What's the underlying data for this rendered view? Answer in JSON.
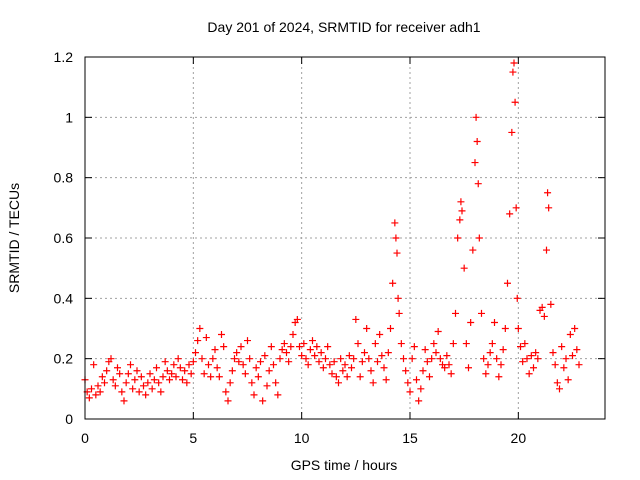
{
  "chart_data": {
    "type": "scatter",
    "title": "Day 201 of 2024, SRMTID for receiver adh1",
    "xlabel": "GPS time / hours",
    "ylabel": "SRMTID / TECUs",
    "xlim": [
      0,
      24
    ],
    "ylim": [
      0,
      1.2
    ],
    "xticks": [
      0,
      5,
      10,
      15,
      20
    ],
    "xtick_labels": [
      "0",
      "5",
      "10",
      "15",
      "20"
    ],
    "yticks": [
      0,
      0.2,
      0.4,
      0.6,
      0.8,
      1.0,
      1.2
    ],
    "ytick_labels": [
      "0",
      "0.2",
      "0.4",
      "0.6",
      "0.8",
      "1",
      "1.2"
    ],
    "grid": true,
    "marker": "+",
    "series": [
      {
        "name": "SRMTID",
        "color": "#ff0000",
        "points": [
          [
            0.0,
            0.13
          ],
          [
            0.1,
            0.09
          ],
          [
            0.2,
            0.07
          ],
          [
            0.3,
            0.1
          ],
          [
            0.4,
            0.18
          ],
          [
            0.5,
            0.08
          ],
          [
            0.6,
            0.11
          ],
          [
            0.7,
            0.09
          ],
          [
            0.8,
            0.14
          ],
          [
            0.9,
            0.12
          ],
          [
            1.0,
            0.16
          ],
          [
            1.1,
            0.19
          ],
          [
            1.2,
            0.2
          ],
          [
            1.3,
            0.13
          ],
          [
            1.4,
            0.11
          ],
          [
            1.5,
            0.17
          ],
          [
            1.6,
            0.15
          ],
          [
            1.7,
            0.09
          ],
          [
            1.8,
            0.06
          ],
          [
            1.9,
            0.12
          ],
          [
            2.0,
            0.15
          ],
          [
            2.1,
            0.18
          ],
          [
            2.2,
            0.1
          ],
          [
            2.3,
            0.13
          ],
          [
            2.4,
            0.16
          ],
          [
            2.5,
            0.09
          ],
          [
            2.6,
            0.14
          ],
          [
            2.7,
            0.11
          ],
          [
            2.8,
            0.08
          ],
          [
            2.9,
            0.12
          ],
          [
            3.0,
            0.15
          ],
          [
            3.1,
            0.1
          ],
          [
            3.2,
            0.13
          ],
          [
            3.3,
            0.17
          ],
          [
            3.4,
            0.12
          ],
          [
            3.5,
            0.09
          ],
          [
            3.6,
            0.14
          ],
          [
            3.7,
            0.19
          ],
          [
            3.8,
            0.16
          ],
          [
            3.9,
            0.13
          ],
          [
            4.0,
            0.15
          ],
          [
            4.1,
            0.18
          ],
          [
            4.2,
            0.14
          ],
          [
            4.3,
            0.2
          ],
          [
            4.4,
            0.17
          ],
          [
            4.5,
            0.13
          ],
          [
            4.6,
            0.16
          ],
          [
            4.7,
            0.12
          ],
          [
            4.8,
            0.18
          ],
          [
            4.9,
            0.15
          ],
          [
            5.0,
            0.19
          ],
          [
            5.1,
            0.22
          ],
          [
            5.2,
            0.26
          ],
          [
            5.3,
            0.3
          ],
          [
            5.4,
            0.2
          ],
          [
            5.5,
            0.15
          ],
          [
            5.6,
            0.27
          ],
          [
            5.7,
            0.18
          ],
          [
            5.8,
            0.14
          ],
          [
            5.9,
            0.2
          ],
          [
            6.0,
            0.23
          ],
          [
            6.1,
            0.17
          ],
          [
            6.2,
            0.14
          ],
          [
            6.3,
            0.28
          ],
          [
            6.4,
            0.24
          ],
          [
            6.5,
            0.09
          ],
          [
            6.6,
            0.06
          ],
          [
            6.7,
            0.12
          ],
          [
            6.8,
            0.16
          ],
          [
            6.9,
            0.2
          ],
          [
            7.0,
            0.22
          ],
          [
            7.1,
            0.19
          ],
          [
            7.2,
            0.24
          ],
          [
            7.3,
            0.18
          ],
          [
            7.4,
            0.15
          ],
          [
            7.5,
            0.26
          ],
          [
            7.6,
            0.2
          ],
          [
            7.7,
            0.12
          ],
          [
            7.8,
            0.08
          ],
          [
            7.9,
            0.17
          ],
          [
            8.0,
            0.14
          ],
          [
            8.1,
            0.19
          ],
          [
            8.2,
            0.06
          ],
          [
            8.3,
            0.21
          ],
          [
            8.4,
            0.11
          ],
          [
            8.5,
            0.16
          ],
          [
            8.6,
            0.24
          ],
          [
            8.7,
            0.18
          ],
          [
            8.8,
            0.12
          ],
          [
            8.9,
            0.08
          ],
          [
            9.0,
            0.2
          ],
          [
            9.1,
            0.23
          ],
          [
            9.2,
            0.25
          ],
          [
            9.3,
            0.22
          ],
          [
            9.4,
            0.19
          ],
          [
            9.5,
            0.24
          ],
          [
            9.6,
            0.28
          ],
          [
            9.7,
            0.32
          ],
          [
            9.8,
            0.33
          ],
          [
            9.9,
            0.24
          ],
          [
            10.0,
            0.21
          ],
          [
            10.1,
            0.25
          ],
          [
            10.2,
            0.2
          ],
          [
            10.3,
            0.18
          ],
          [
            10.4,
            0.23
          ],
          [
            10.5,
            0.26
          ],
          [
            10.6,
            0.21
          ],
          [
            10.7,
            0.24
          ],
          [
            10.8,
            0.19
          ],
          [
            10.9,
            0.22
          ],
          [
            11.0,
            0.17
          ],
          [
            11.1,
            0.2
          ],
          [
            11.2,
            0.24
          ],
          [
            11.3,
            0.18
          ],
          [
            11.4,
            0.15
          ],
          [
            11.5,
            0.19
          ],
          [
            11.6,
            0.14
          ],
          [
            11.7,
            0.12
          ],
          [
            11.8,
            0.2
          ],
          [
            11.9,
            0.16
          ],
          [
            12.0,
            0.18
          ],
          [
            12.1,
            0.14
          ],
          [
            12.2,
            0.21
          ],
          [
            12.3,
            0.17
          ],
          [
            12.4,
            0.2
          ],
          [
            12.5,
            0.33
          ],
          [
            12.6,
            0.25
          ],
          [
            12.7,
            0.14
          ],
          [
            12.8,
            0.19
          ],
          [
            12.9,
            0.22
          ],
          [
            13.0,
            0.3
          ],
          [
            13.1,
            0.2
          ],
          [
            13.2,
            0.16
          ],
          [
            13.3,
            0.12
          ],
          [
            13.4,
            0.25
          ],
          [
            13.5,
            0.19
          ],
          [
            13.6,
            0.28
          ],
          [
            13.7,
            0.21
          ],
          [
            13.8,
            0.17
          ],
          [
            13.9,
            0.13
          ],
          [
            14.0,
            0.22
          ],
          [
            14.1,
            0.3
          ],
          [
            14.2,
            0.45
          ],
          [
            14.3,
            0.65
          ],
          [
            14.35,
            0.6
          ],
          [
            14.4,
            0.55
          ],
          [
            14.45,
            0.4
          ],
          [
            14.5,
            0.35
          ],
          [
            14.6,
            0.25
          ],
          [
            14.7,
            0.2
          ],
          [
            14.8,
            0.16
          ],
          [
            14.9,
            0.12
          ],
          [
            15.0,
            0.09
          ],
          [
            15.1,
            0.2
          ],
          [
            15.2,
            0.24
          ],
          [
            15.3,
            0.13
          ],
          [
            15.4,
            0.06
          ],
          [
            15.5,
            0.1
          ],
          [
            15.6,
            0.16
          ],
          [
            15.7,
            0.23
          ],
          [
            15.8,
            0.19
          ],
          [
            15.9,
            0.14
          ],
          [
            16.0,
            0.2
          ],
          [
            16.1,
            0.25
          ],
          [
            16.2,
            0.22
          ],
          [
            16.3,
            0.29
          ],
          [
            16.4,
            0.2
          ],
          [
            16.5,
            0.18
          ],
          [
            16.6,
            0.17
          ],
          [
            16.7,
            0.21
          ],
          [
            16.8,
            0.18
          ],
          [
            16.9,
            0.15
          ],
          [
            17.0,
            0.25
          ],
          [
            17.1,
            0.35
          ],
          [
            17.2,
            0.6
          ],
          [
            17.3,
            0.66
          ],
          [
            17.35,
            0.72
          ],
          [
            17.4,
            0.69
          ],
          [
            17.5,
            0.5
          ],
          [
            17.6,
            0.25
          ],
          [
            17.7,
            0.17
          ],
          [
            17.8,
            0.32
          ],
          [
            17.9,
            0.56
          ],
          [
            18.0,
            0.85
          ],
          [
            18.05,
            1.0
          ],
          [
            18.1,
            0.92
          ],
          [
            18.15,
            0.78
          ],
          [
            18.2,
            0.6
          ],
          [
            18.3,
            0.35
          ],
          [
            18.4,
            0.2
          ],
          [
            18.5,
            0.15
          ],
          [
            18.6,
            0.18
          ],
          [
            18.7,
            0.22
          ],
          [
            18.8,
            0.25
          ],
          [
            18.9,
            0.32
          ],
          [
            19.0,
            0.2
          ],
          [
            19.1,
            0.14
          ],
          [
            19.2,
            0.18
          ],
          [
            19.3,
            0.23
          ],
          [
            19.4,
            0.3
          ],
          [
            19.5,
            0.45
          ],
          [
            19.6,
            0.68
          ],
          [
            19.7,
            0.95
          ],
          [
            19.75,
            1.15
          ],
          [
            19.8,
            1.18
          ],
          [
            19.85,
            1.05
          ],
          [
            19.9,
            0.7
          ],
          [
            19.95,
            0.4
          ],
          [
            20.0,
            0.3
          ],
          [
            20.1,
            0.24
          ],
          [
            20.2,
            0.19
          ],
          [
            20.3,
            0.25
          ],
          [
            20.4,
            0.2
          ],
          [
            20.5,
            0.15
          ],
          [
            20.6,
            0.21
          ],
          [
            20.7,
            0.17
          ],
          [
            20.8,
            0.22
          ],
          [
            20.9,
            0.2
          ],
          [
            21.0,
            0.36
          ],
          [
            21.1,
            0.37
          ],
          [
            21.2,
            0.34
          ],
          [
            21.3,
            0.56
          ],
          [
            21.35,
            0.75
          ],
          [
            21.4,
            0.7
          ],
          [
            21.5,
            0.38
          ],
          [
            21.6,
            0.22
          ],
          [
            21.7,
            0.18
          ],
          [
            21.8,
            0.12
          ],
          [
            21.9,
            0.1
          ],
          [
            22.0,
            0.24
          ],
          [
            22.1,
            0.17
          ],
          [
            22.2,
            0.2
          ],
          [
            22.3,
            0.13
          ],
          [
            22.4,
            0.28
          ],
          [
            22.5,
            0.21
          ],
          [
            22.6,
            0.3
          ],
          [
            22.7,
            0.23
          ],
          [
            22.8,
            0.18
          ]
        ]
      }
    ]
  }
}
